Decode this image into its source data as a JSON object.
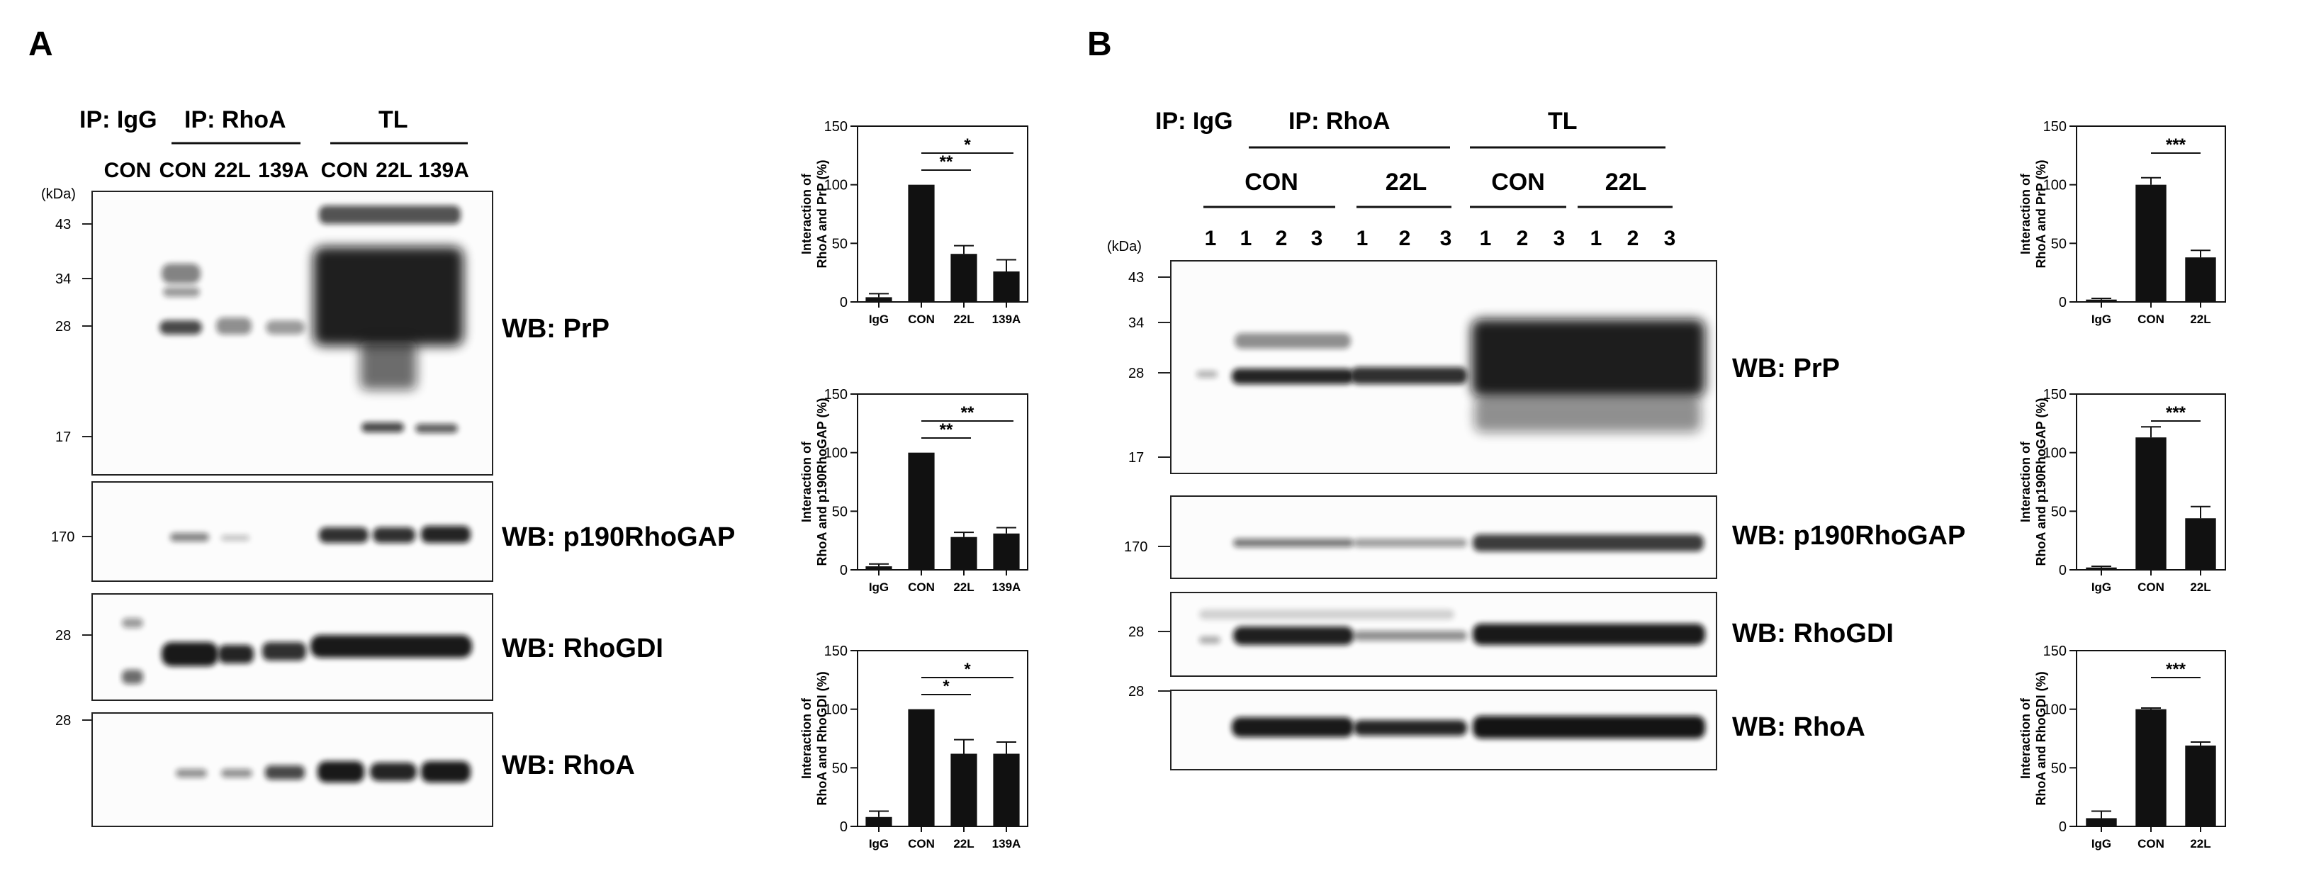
{
  "panels": {
    "A": {
      "letter": "A",
      "ip_igg": "IP: IgG",
      "ip_rhoa": "IP: RhoA",
      "tl": "TL",
      "lanes": [
        "CON",
        "CON",
        "22L",
        "139A",
        "CON",
        "22L",
        "139A"
      ],
      "kda": "(kDa)",
      "blots": [
        {
          "label": "WB: PrP",
          "markers": [
            "43",
            "34",
            "28",
            "17"
          ]
        },
        {
          "label": "WB: p190RhoGAP",
          "markers": [
            "170"
          ]
        },
        {
          "label": "WB: RhoGDI",
          "markers": [
            "28"
          ]
        },
        {
          "label": "WB: RhoA",
          "markers": [
            "28"
          ]
        }
      ]
    },
    "B": {
      "letter": "B",
      "ip_igg": "IP: IgG",
      "ip_rhoa": "IP: RhoA",
      "tl": "TL",
      "groups": [
        "CON",
        "22L",
        "CON",
        "22L"
      ],
      "lanes": [
        "1",
        "1",
        "2",
        "3",
        "1",
        "2",
        "3",
        "1",
        "2",
        "3",
        "1",
        "2",
        "3"
      ],
      "kda": "(kDa)",
      "blots": [
        {
          "label": "WB: PrP",
          "markers": [
            "43",
            "34",
            "28",
            "17"
          ]
        },
        {
          "label": "WB: p190RhoGAP",
          "markers": [
            "170"
          ]
        },
        {
          "label": "WB: RhoGDI",
          "markers": [
            "28"
          ]
        },
        {
          "label": "WB: RhoA",
          "markers": [
            "28"
          ]
        }
      ]
    }
  },
  "chart_data": [
    {
      "type": "bar",
      "panel": "A",
      "ylabel": "Interaction of\nRhoA and PrP (%)",
      "categories": [
        "IgG",
        "CON",
        "22L",
        "139A"
      ],
      "values": [
        4,
        100,
        41,
        26
      ],
      "errors": [
        3,
        0,
        7,
        10
      ],
      "ylim": [
        0,
        150
      ],
      "yticks": [
        "0",
        "50",
        "100",
        "150"
      ],
      "significance": [
        {
          "from": 1,
          "to": 2,
          "label": "**"
        },
        {
          "from": 1,
          "to": 3,
          "label": "*"
        }
      ]
    },
    {
      "type": "bar",
      "panel": "A",
      "ylabel": "Interaction of\nRhoA and p190RhoGAP (%)",
      "categories": [
        "IgG",
        "CON",
        "22L",
        "139A"
      ],
      "values": [
        3,
        100,
        28,
        31
      ],
      "errors": [
        2,
        0,
        4,
        5
      ],
      "ylim": [
        0,
        150
      ],
      "yticks": [
        "0",
        "50",
        "100",
        "150"
      ],
      "significance": [
        {
          "from": 1,
          "to": 2,
          "label": "**"
        },
        {
          "from": 1,
          "to": 3,
          "label": "**"
        }
      ]
    },
    {
      "type": "bar",
      "panel": "A",
      "ylabel": "Interaction of\nRhoA and RhoGDI (%)",
      "categories": [
        "IgG",
        "CON",
        "22L",
        "139A"
      ],
      "values": [
        8,
        100,
        62,
        62
      ],
      "errors": [
        5,
        0,
        12,
        10
      ],
      "ylim": [
        0,
        150
      ],
      "yticks": [
        "0",
        "50",
        "100",
        "150"
      ],
      "significance": [
        {
          "from": 1,
          "to": 2,
          "label": "*"
        },
        {
          "from": 1,
          "to": 3,
          "label": "*"
        }
      ]
    },
    {
      "type": "bar",
      "panel": "B",
      "ylabel": "Interaction of\nRhoA and PrP (%)",
      "categories": [
        "IgG",
        "CON",
        "22L"
      ],
      "values": [
        2,
        100,
        38
      ],
      "errors": [
        1,
        6,
        6
      ],
      "ylim": [
        0,
        150
      ],
      "yticks": [
        "0",
        "50",
        "100",
        "150"
      ],
      "significance": [
        {
          "from": 1,
          "to": 2,
          "label": "***"
        }
      ]
    },
    {
      "type": "bar",
      "panel": "B",
      "ylabel": "Interaction of\nRhoA and p190RhoGAP (%)",
      "categories": [
        "IgG",
        "CON",
        "22L"
      ],
      "values": [
        2,
        113,
        44
      ],
      "errors": [
        1,
        9,
        10
      ],
      "ylim": [
        0,
        150
      ],
      "yticks": [
        "0",
        "50",
        "100",
        "150"
      ],
      "significance": [
        {
          "from": 1,
          "to": 2,
          "label": "***"
        }
      ]
    },
    {
      "type": "bar",
      "panel": "B",
      "ylabel": "Interaction of\nRhoA and RhoGDI (%)",
      "categories": [
        "IgG",
        "CON",
        "22L"
      ],
      "values": [
        7,
        100,
        69
      ],
      "errors": [
        6,
        1,
        3
      ],
      "ylim": [
        0,
        150
      ],
      "yticks": [
        "0",
        "50",
        "100",
        "150"
      ],
      "significance": [
        {
          "from": 1,
          "to": 2,
          "label": "***"
        }
      ]
    }
  ]
}
